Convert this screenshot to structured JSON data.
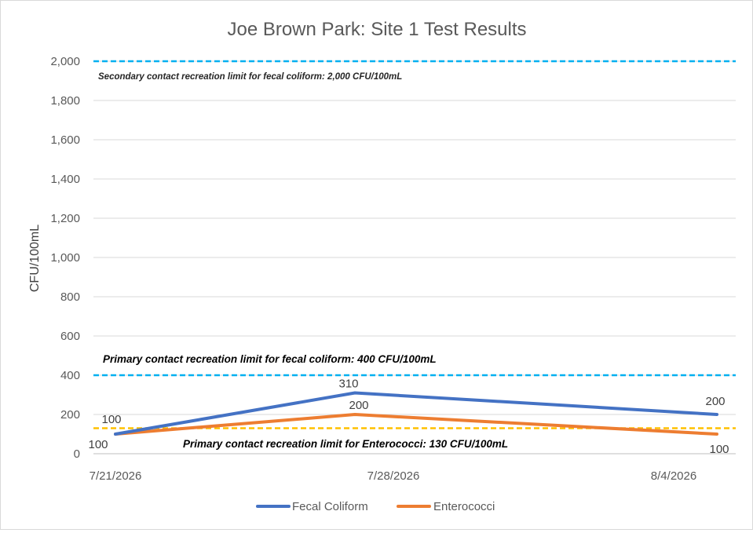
{
  "chart_data": {
    "type": "line",
    "title": "Joe Brown Park: Site 1 Test Results",
    "xlabel": "",
    "ylabel": "CFU/100mL",
    "ylim": [
      0,
      2000
    ],
    "yticks": [
      0,
      200,
      400,
      600,
      800,
      1000,
      1200,
      1400,
      1600,
      1800,
      2000
    ],
    "ytick_labels": [
      "0",
      "200",
      "400",
      "600",
      "800",
      "1,000",
      "1,200",
      "1,400",
      "1,600",
      "1,800",
      "2,000"
    ],
    "x": [
      "7/21/2026",
      "7/28/2026",
      "8/4/2026"
    ],
    "xtick_labels": [
      "7/21/2026",
      "7/28/2026",
      "8/4/2026"
    ],
    "grid": true,
    "legend_position": "bottom",
    "series": [
      {
        "name": "Fecal Coliform",
        "color": "#4472c4",
        "values": [
          100,
          310,
          200
        ],
        "labels": [
          "100",
          "310",
          "200"
        ]
      },
      {
        "name": "Enterococci",
        "color": "#ed7d31",
        "values": [
          100,
          200,
          100
        ],
        "labels": [
          "100",
          "200",
          "100"
        ]
      }
    ],
    "reference_lines": [
      {
        "value": 2000,
        "color": "#00b0f0",
        "style": "dashed",
        "label": "Secondary contact recreation limit for fecal coliform: 2,000 CFU/100mL"
      },
      {
        "value": 400,
        "color": "#00b0f0",
        "style": "dashed",
        "label": "Primary contact recreation limit for fecal coliform: 400 CFU/100mL"
      },
      {
        "value": 130,
        "color": "#ffc000",
        "style": "dashed",
        "label": "Primary contact recreation limit for Enterococci: 130 CFU/100mL"
      }
    ]
  }
}
